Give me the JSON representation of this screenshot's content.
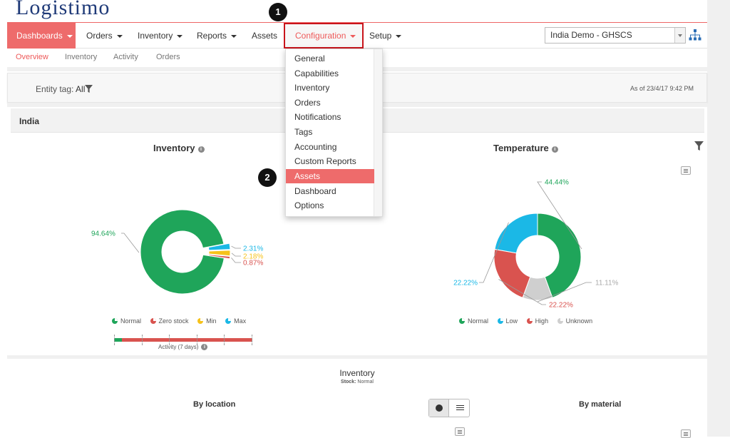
{
  "app": {
    "logo_text": "Logistimo"
  },
  "topnav": {
    "items": [
      {
        "label": "Dashboards"
      },
      {
        "label": "Orders"
      },
      {
        "label": "Inventory"
      },
      {
        "label": "Reports"
      },
      {
        "label": "Assets"
      },
      {
        "label": "Configuration"
      },
      {
        "label": "Setup"
      }
    ],
    "domain_select": "India Demo - GHSCS"
  },
  "subnav": {
    "items": [
      "Overview",
      "Inventory",
      "Activity",
      "Orders"
    ]
  },
  "filter": {
    "entity_label": "Entity tag:",
    "entity_value": "All",
    "as_of": "As of 23/4/17 9:42 PM"
  },
  "region": "India",
  "config_menu": {
    "items": [
      "General",
      "Capabilities",
      "Inventory",
      "Orders",
      "Notifications",
      "Tags",
      "Accounting",
      "Custom Reports",
      "Assets",
      "Dashboard",
      "Options"
    ],
    "highlighted": "Assets"
  },
  "annotations": {
    "step1": "1",
    "step2": "2"
  },
  "colors": {
    "accent": "#ee6b6b",
    "green": "#1fa55a",
    "red": "#d9534f",
    "yellow": "#f6c21a",
    "cyan": "#1bb8e6",
    "grey": "#cfcfcf"
  },
  "inventory_chart": {
    "title": "Inventory",
    "legend": [
      "Normal",
      "Zero stock",
      "Min",
      "Max"
    ],
    "activity_label": "Activity (7 days)"
  },
  "temperature_chart": {
    "title": "Temperature",
    "legend": [
      "Normal",
      "Low",
      "High",
      "Unknown"
    ]
  },
  "chart_data": [
    {
      "type": "pie",
      "title": "Inventory",
      "categories": [
        "Normal",
        "Max",
        "Min",
        "Zero stock"
      ],
      "values": [
        94.64,
        2.31,
        2.18,
        0.87
      ],
      "labels": [
        "94.64%",
        "2.31%",
        "2.18%",
        "0.87%"
      ],
      "colors": [
        "#1fa55a",
        "#1bb8e6",
        "#f6c21a",
        "#d9534f"
      ]
    },
    {
      "type": "pie",
      "title": "Temperature",
      "categories": [
        "Normal",
        "Unknown",
        "High",
        "Low"
      ],
      "values": [
        44.44,
        11.11,
        22.22,
        22.22
      ],
      "labels": [
        "44.44%",
        "11.11%",
        "22.22%",
        "22.22%"
      ],
      "colors": [
        "#1fa55a",
        "#cfcfcf",
        "#d9534f",
        "#1bb8e6"
      ]
    }
  ],
  "bottom": {
    "title": "Inventory",
    "stock_label": "Stock:",
    "stock_value": "Normal",
    "by_location": "By location",
    "by_material": "By material"
  }
}
